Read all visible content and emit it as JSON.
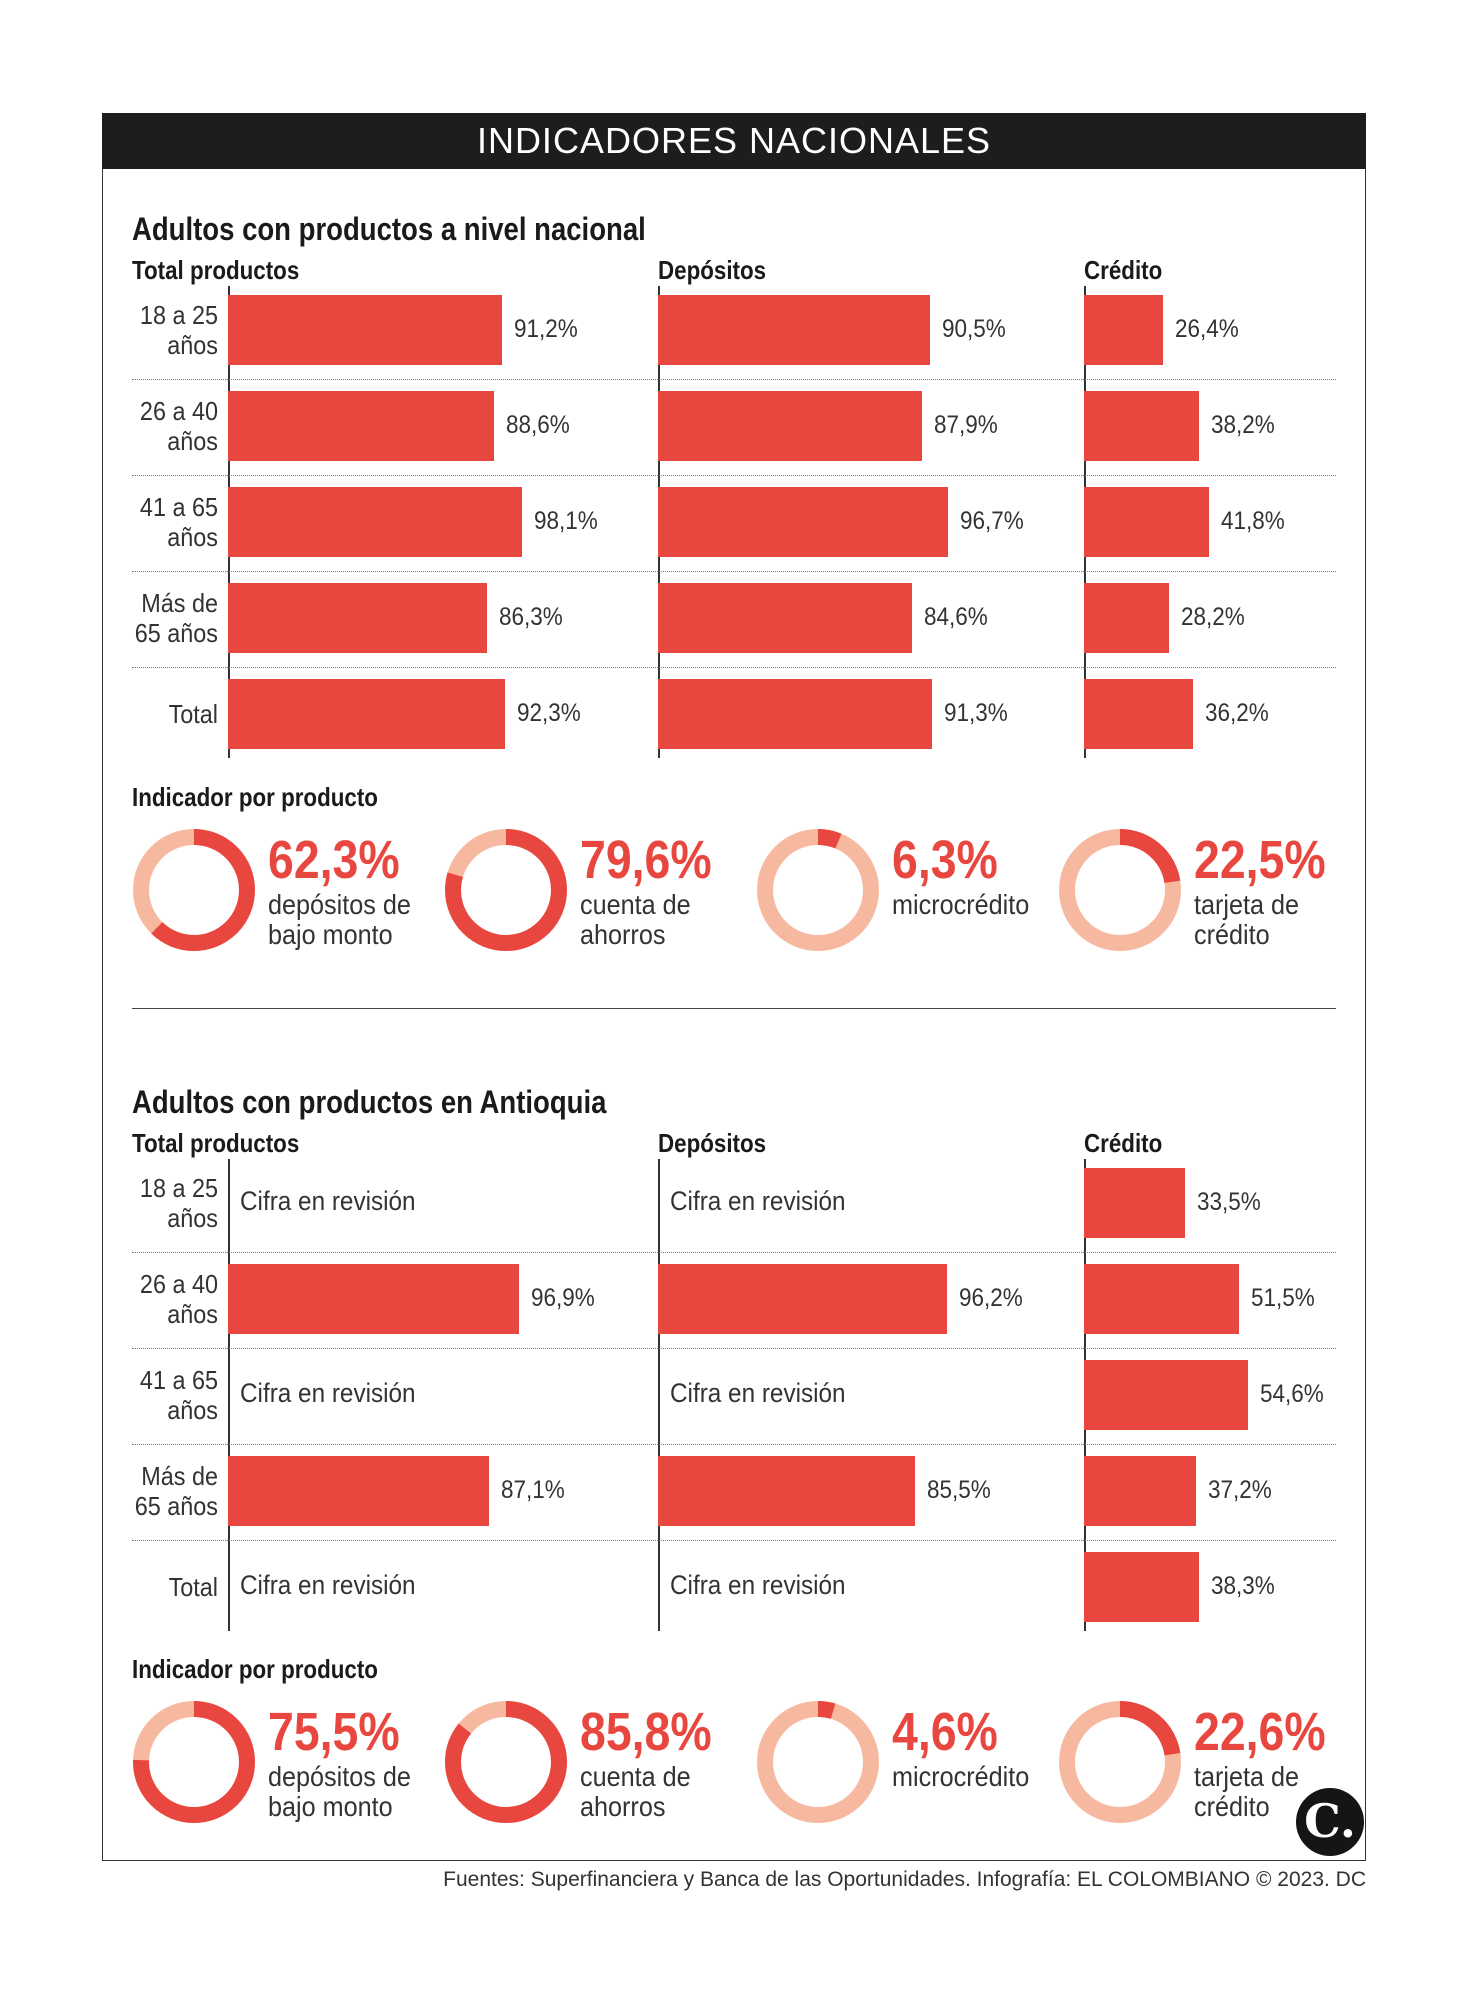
{
  "header": "INDICADORES NACIONALES",
  "colors": {
    "bar": "#e8473f",
    "donut_bg": "#f7b8a0",
    "donut_fg": "#e8473f"
  },
  "chart_data": [
    {
      "type": "bar",
      "title": "Adultos con productos a nivel nacional",
      "categories": [
        "18 a 25 años",
        "26 a 40 años",
        "41 a 65 años",
        "Más de 65 años",
        "Total"
      ],
      "series": [
        {
          "name": "Total productos",
          "values": [
            91.2,
            88.6,
            98.1,
            86.3,
            92.3
          ],
          "labels": [
            "91,2%",
            "88,6%",
            "98,1%",
            "86,3%",
            "92,3%"
          ]
        },
        {
          "name": "Depósitos",
          "values": [
            90.5,
            87.9,
            96.7,
            84.6,
            91.3
          ],
          "labels": [
            "90,5%",
            "87,9%",
            "96,7%",
            "84,6%",
            "91,3%"
          ]
        },
        {
          "name": "Crédito",
          "values": [
            26.4,
            38.2,
            41.8,
            28.2,
            36.2
          ],
          "labels": [
            "26,4%",
            "38,2%",
            "41,8%",
            "28,2%",
            "36,2%"
          ]
        }
      ],
      "ylim": [
        0,
        100
      ]
    },
    {
      "type": "pie",
      "title": "Indicador por producto",
      "items": [
        {
          "pct": "62,3%",
          "value": 62.3,
          "label": "depósitos de\nbajo monto"
        },
        {
          "pct": "79,6%",
          "value": 79.6,
          "label": "cuenta de\nahorros"
        },
        {
          "pct": "6,3%",
          "value": 6.3,
          "label": "microcrédito"
        },
        {
          "pct": "22,5%",
          "value": 22.5,
          "label": "tarjeta de\ncrédito"
        }
      ]
    },
    {
      "type": "bar",
      "title": "Adultos con productos en Antioquia",
      "categories": [
        "18 a 25 años",
        "26 a 40 años",
        "41 a 65 años",
        "Más de 65 años",
        "Total"
      ],
      "series": [
        {
          "name": "Total productos",
          "values": [
            null,
            96.9,
            null,
            87.1,
            null
          ],
          "labels": [
            "Cifra en revisión",
            "96,9%",
            "Cifra en revisión",
            "87,1%",
            "Cifra en revisión"
          ]
        },
        {
          "name": "Depósitos",
          "values": [
            null,
            96.2,
            null,
            85.5,
            null
          ],
          "labels": [
            "Cifra en revisión",
            "96,2%",
            "Cifra en revisión",
            "85,5%",
            "Cifra en revisión"
          ]
        },
        {
          "name": "Crédito",
          "values": [
            33.5,
            51.5,
            54.6,
            37.2,
            38.3
          ],
          "labels": [
            "33,5%",
            "51,5%",
            "54,6%",
            "37,2%",
            "38,3%"
          ]
        }
      ],
      "ylim": [
        0,
        100
      ]
    },
    {
      "type": "pie",
      "title": "Indicador por producto",
      "items": [
        {
          "pct": "75,5%",
          "value": 75.5,
          "label": "depósitos de\nbajo monto"
        },
        {
          "pct": "85,8%",
          "value": 85.8,
          "label": "cuenta de\nahorros"
        },
        {
          "pct": "4,6%",
          "value": 4.6,
          "label": "microcrédito"
        },
        {
          "pct": "22,6%",
          "value": 22.6,
          "label": "tarjeta de\ncrédito"
        }
      ]
    }
  ],
  "row_labels": [
    "18 a 25\naños",
    "26 a 40\naños",
    "41 a 65\naños",
    "Más de\n65 años",
    "Total"
  ],
  "footer": "Fuentes: Superfinanciera y Banca de las Oportunidades. Infografía: EL COLOMBIANO © 2023. DC",
  "logo": "C."
}
